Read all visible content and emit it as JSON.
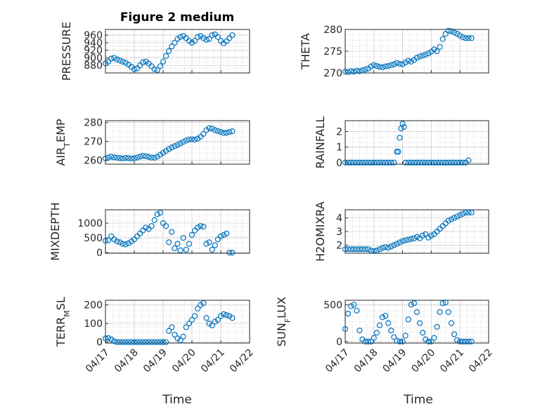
{
  "figure": {
    "title": "Figure 2 medium",
    "xlabel": "Time"
  },
  "colors": {
    "marker": "#0072BD",
    "axis": "#262626",
    "grid": "#b8b8b8"
  },
  "chart_data": [
    {
      "type": "scatter",
      "title": "Figure 2 medium",
      "ylabel": "PRESSURE",
      "ylim": [
        860,
        975
      ],
      "yticks": [
        "960",
        "940",
        "920",
        "900",
        "880"
      ],
      "ytick_values": [
        960,
        940,
        920,
        900,
        880
      ],
      "xlim": [
        0,
        5
      ],
      "xticks": [
        "04/17",
        "04/18",
        "04/19",
        "04/20",
        "04/21",
        "04/22"
      ],
      "show_xticks": false,
      "grid": true,
      "x": [
        0.0,
        0.1,
        0.2,
        0.3,
        0.4,
        0.5,
        0.6,
        0.7,
        0.8,
        0.9,
        1.0,
        1.1,
        1.2,
        1.3,
        1.4,
        1.5,
        1.6,
        1.7,
        1.8,
        1.9,
        2.0,
        2.1,
        2.2,
        2.3,
        2.4,
        2.5,
        2.6,
        2.7,
        2.8,
        2.9,
        3.0,
        3.1,
        3.2,
        3.3,
        3.4,
        3.5,
        3.6,
        3.7,
        3.8,
        3.9,
        4.0,
        4.1,
        4.2,
        4.3,
        4.4
      ],
      "y": [
        885,
        890,
        898,
        900,
        896,
        893,
        890,
        887,
        882,
        876,
        870,
        872,
        880,
        888,
        890,
        885,
        878,
        870,
        868,
        878,
        890,
        905,
        918,
        930,
        940,
        950,
        955,
        958,
        952,
        945,
        940,
        945,
        955,
        958,
        952,
        948,
        950,
        960,
        962,
        955,
        945,
        938,
        944,
        952,
        960
      ]
    },
    {
      "type": "scatter",
      "ylabel": "THETA",
      "ylim": [
        270,
        280
      ],
      "yticks": [
        "280",
        "275",
        "270"
      ],
      "ytick_values": [
        280,
        275,
        270
      ],
      "xlim": [
        0,
        5
      ],
      "xticks": [
        "04/17",
        "04/18",
        "04/19",
        "04/20",
        "04/21",
        "04/22"
      ],
      "show_xticks": false,
      "grid": true,
      "x": [
        0.0,
        0.1,
        0.2,
        0.3,
        0.4,
        0.5,
        0.6,
        0.7,
        0.8,
        0.9,
        1.0,
        1.1,
        1.2,
        1.3,
        1.4,
        1.5,
        1.6,
        1.7,
        1.8,
        1.9,
        2.0,
        2.1,
        2.2,
        2.3,
        2.4,
        2.5,
        2.6,
        2.7,
        2.8,
        2.9,
        3.0,
        3.1,
        3.2,
        3.3,
        3.4,
        3.5,
        3.6,
        3.7,
        3.8,
        3.9,
        4.0,
        4.1,
        4.2,
        4.3,
        4.4
      ],
      "y": [
        270.3,
        270.2,
        270.4,
        270.3,
        270.5,
        270.4,
        270.6,
        270.8,
        271.0,
        271.5,
        271.8,
        271.6,
        271.4,
        271.3,
        271.5,
        271.6,
        271.8,
        272.0,
        272.3,
        272.1,
        272.0,
        272.4,
        272.8,
        272.6,
        273.0,
        273.5,
        273.8,
        274.0,
        274.2,
        274.5,
        274.9,
        275.4,
        275.0,
        276.0,
        277.8,
        279.0,
        279.7,
        279.6,
        279.3,
        279.0,
        278.6,
        278.2,
        278.0,
        278.0,
        278.0
      ]
    },
    {
      "type": "scatter",
      "ylabel": "AIR_TEMP",
      "ylim": [
        258,
        281
      ],
      "yticks": [
        "280",
        "270",
        "260"
      ],
      "ytick_values": [
        280,
        270,
        260
      ],
      "xlim": [
        0,
        5
      ],
      "xticks": [
        "04/17",
        "04/18",
        "04/19",
        "04/20",
        "04/21",
        "04/22"
      ],
      "show_xticks": false,
      "grid": true,
      "x": [
        0.0,
        0.1,
        0.2,
        0.3,
        0.4,
        0.5,
        0.6,
        0.7,
        0.8,
        0.9,
        1.0,
        1.1,
        1.2,
        1.3,
        1.4,
        1.5,
        1.6,
        1.7,
        1.8,
        1.9,
        2.0,
        2.1,
        2.2,
        2.3,
        2.4,
        2.5,
        2.6,
        2.7,
        2.8,
        2.9,
        3.0,
        3.1,
        3.2,
        3.3,
        3.4,
        3.5,
        3.6,
        3.7,
        3.8,
        3.9,
        4.0,
        4.1,
        4.2,
        4.3,
        4.4
      ],
      "y": [
        261,
        261.5,
        262,
        261.6,
        261.4,
        261.2,
        261.0,
        261.3,
        261.2,
        261.0,
        261.1,
        261.5,
        262.0,
        262.4,
        262.2,
        261.8,
        261.5,
        261.4,
        262.0,
        263.0,
        264.0,
        265.0,
        266.0,
        266.8,
        267.5,
        268.2,
        269.0,
        269.8,
        270.5,
        271.0,
        271.2,
        271.0,
        271.5,
        272.5,
        274.0,
        276.0,
        277.0,
        276.8,
        276.0,
        275.5,
        275.0,
        274.5,
        274.6,
        275.0,
        275.4
      ]
    },
    {
      "type": "scatter",
      "ylabel": "RAINFALL",
      "ylim": [
        -0.1,
        2.7
      ],
      "yticks": [
        "2",
        "1",
        "0"
      ],
      "ytick_values": [
        2,
        1,
        0
      ],
      "xlim": [
        0,
        5
      ],
      "xticks": [
        "04/17",
        "04/18",
        "04/19",
        "04/20",
        "04/21",
        "04/22"
      ],
      "show_xticks": false,
      "grid": true,
      "x": [
        0.0,
        0.1,
        0.2,
        0.3,
        0.4,
        0.5,
        0.6,
        0.7,
        0.8,
        0.9,
        1.0,
        1.1,
        1.2,
        1.3,
        1.4,
        1.5,
        1.6,
        1.7,
        1.8,
        1.85,
        1.9,
        1.95,
        2.0,
        2.05,
        2.1,
        2.2,
        2.3,
        2.4,
        2.5,
        2.6,
        2.7,
        2.8,
        2.9,
        3.0,
        3.1,
        3.2,
        3.3,
        3.4,
        3.5,
        3.6,
        3.7,
        3.8,
        3.9,
        4.0,
        4.1,
        4.2,
        4.3
      ],
      "y": [
        0,
        0,
        0,
        0,
        0,
        0,
        0,
        0,
        0,
        0,
        0,
        0,
        0,
        0,
        0,
        0,
        0,
        0,
        0.7,
        0.7,
        1.6,
        2.2,
        2.5,
        2.3,
        0,
        0,
        0,
        0,
        0,
        0,
        0,
        0,
        0,
        0,
        0,
        0,
        0,
        0,
        0,
        0,
        0,
        0,
        0,
        0,
        0,
        0,
        0.15
      ]
    },
    {
      "type": "scatter",
      "ylabel": "MIXDEPTH",
      "ylim": [
        -20,
        1450
      ],
      "yticks": [
        "1000",
        "500",
        "0"
      ],
      "ytick_values": [
        1000,
        500,
        0
      ],
      "xlim": [
        0,
        5
      ],
      "xticks": [
        "04/17",
        "04/18",
        "04/19",
        "04/20",
        "04/21",
        "04/22"
      ],
      "show_xticks": false,
      "grid": true,
      "x": [
        0.0,
        0.1,
        0.2,
        0.3,
        0.4,
        0.5,
        0.6,
        0.7,
        0.8,
        0.9,
        1.0,
        1.1,
        1.2,
        1.3,
        1.4,
        1.5,
        1.6,
        1.7,
        1.8,
        1.9,
        2.0,
        2.1,
        2.2,
        2.3,
        2.4,
        2.5,
        2.6,
        2.7,
        2.8,
        2.9,
        3.0,
        3.1,
        3.2,
        3.3,
        3.4,
        3.5,
        3.6,
        3.7,
        3.8,
        3.9,
        4.0,
        4.1,
        4.2,
        4.3,
        4.4
      ],
      "y": [
        400,
        420,
        550,
        450,
        380,
        350,
        300,
        280,
        320,
        380,
        450,
        550,
        650,
        750,
        850,
        800,
        900,
        1100,
        1300,
        1350,
        1000,
        900,
        350,
        700,
        150,
        300,
        80,
        500,
        100,
        300,
        600,
        750,
        850,
        900,
        880,
        300,
        350,
        100,
        250,
        450,
        550,
        600,
        650,
        0,
        0
      ]
    },
    {
      "type": "scatter",
      "ylabel": "H2OMIXRA",
      "ylim": [
        1.4,
        4.6
      ],
      "yticks": [
        "4",
        "3",
        "2"
      ],
      "ytick_values": [
        4,
        3,
        2
      ],
      "xlim": [
        0,
        5
      ],
      "xticks": [
        "04/17",
        "04/18",
        "04/19",
        "04/20",
        "04/21",
        "04/22"
      ],
      "show_xticks": false,
      "grid": true,
      "x": [
        0.0,
        0.1,
        0.2,
        0.3,
        0.4,
        0.5,
        0.6,
        0.7,
        0.8,
        0.9,
        1.0,
        1.1,
        1.2,
        1.3,
        1.4,
        1.5,
        1.6,
        1.7,
        1.8,
        1.9,
        2.0,
        2.1,
        2.2,
        2.3,
        2.4,
        2.5,
        2.6,
        2.7,
        2.8,
        2.9,
        3.0,
        3.1,
        3.2,
        3.3,
        3.4,
        3.5,
        3.6,
        3.7,
        3.8,
        3.9,
        4.0,
        4.1,
        4.2,
        4.3,
        4.4
      ],
      "y": [
        1.7,
        1.7,
        1.7,
        1.7,
        1.7,
        1.7,
        1.7,
        1.7,
        1.7,
        1.6,
        1.55,
        1.6,
        1.7,
        1.8,
        1.85,
        1.8,
        1.9,
        2.0,
        2.1,
        2.2,
        2.3,
        2.35,
        2.4,
        2.45,
        2.5,
        2.6,
        2.5,
        2.7,
        2.8,
        2.55,
        2.7,
        2.8,
        3.0,
        3.2,
        3.4,
        3.6,
        3.8,
        3.9,
        4.0,
        4.1,
        4.2,
        4.3,
        4.4,
        4.4,
        4.4
      ]
    },
    {
      "type": "scatter",
      "ylabel": "TERR_MSL",
      "ylim": [
        -5,
        225
      ],
      "yticks": [
        "200",
        "100",
        "0"
      ],
      "ytick_values": [
        200,
        100,
        0
      ],
      "xlim": [
        0,
        5
      ],
      "xticks": [
        "04/17",
        "04/18",
        "04/19",
        "04/20",
        "04/21",
        "04/22"
      ],
      "show_xticks": true,
      "grid": true,
      "x": [
        0.0,
        0.1,
        0.2,
        0.3,
        0.4,
        0.5,
        0.6,
        0.7,
        0.8,
        0.9,
        1.0,
        1.1,
        1.2,
        1.3,
        1.4,
        1.5,
        1.6,
        1.7,
        1.8,
        1.9,
        2.0,
        2.1,
        2.2,
        2.3,
        2.4,
        2.5,
        2.6,
        2.7,
        2.8,
        2.9,
        3.0,
        3.1,
        3.2,
        3.3,
        3.4,
        3.5,
        3.6,
        3.7,
        3.8,
        3.9,
        4.0,
        4.1,
        4.2,
        4.3,
        4.4
      ],
      "y": [
        20,
        22,
        15,
        5,
        0,
        0,
        0,
        0,
        0,
        0,
        0,
        0,
        0,
        0,
        0,
        0,
        0,
        0,
        0,
        0,
        0,
        0,
        60,
        80,
        40,
        20,
        10,
        30,
        80,
        100,
        120,
        140,
        180,
        200,
        210,
        130,
        100,
        90,
        110,
        120,
        140,
        150,
        145,
        140,
        130
      ]
    },
    {
      "type": "scatter",
      "ylabel": "SUN_FLUX",
      "ylim": [
        -20,
        560
      ],
      "yticks": [
        "500",
        "0"
      ],
      "ytick_values": [
        500,
        0
      ],
      "xlim": [
        0,
        5
      ],
      "xticks": [
        "04/17",
        "04/18",
        "04/19",
        "04/20",
        "04/21",
        "04/22"
      ],
      "show_xticks": true,
      "grid": true,
      "x": [
        0.0,
        0.1,
        0.2,
        0.3,
        0.4,
        0.5,
        0.6,
        0.7,
        0.8,
        0.9,
        1.0,
        1.1,
        1.2,
        1.3,
        1.4,
        1.5,
        1.6,
        1.7,
        1.8,
        1.9,
        2.0,
        2.1,
        2.2,
        2.3,
        2.4,
        2.5,
        2.6,
        2.7,
        2.8,
        2.9,
        3.0,
        3.1,
        3.2,
        3.3,
        3.4,
        3.5,
        3.6,
        3.7,
        3.8,
        3.9,
        4.0,
        4.1,
        4.2,
        4.3,
        4.4
      ],
      "y": [
        170,
        380,
        480,
        500,
        420,
        150,
        30,
        0,
        0,
        0,
        50,
        120,
        220,
        330,
        350,
        250,
        150,
        60,
        10,
        0,
        0,
        80,
        300,
        500,
        520,
        400,
        250,
        120,
        30,
        0,
        0,
        50,
        200,
        400,
        520,
        530,
        400,
        250,
        100,
        20,
        0,
        0,
        0,
        0,
        0
      ]
    }
  ]
}
